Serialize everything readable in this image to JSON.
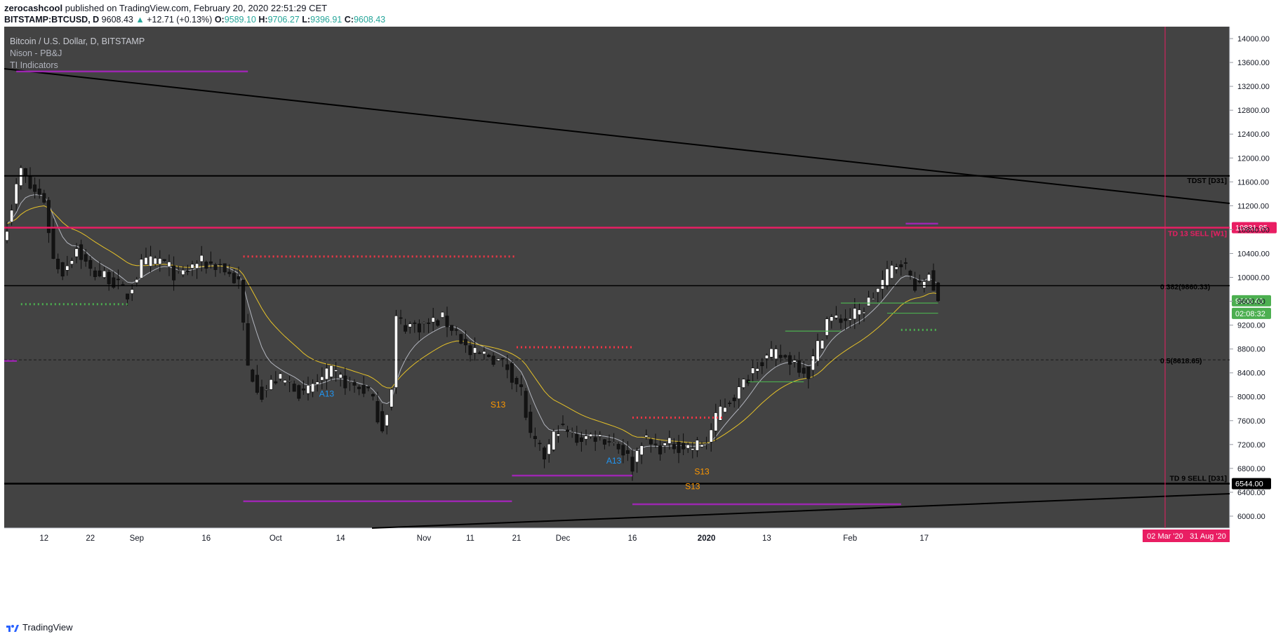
{
  "header": {
    "author": "zerocashcool",
    "published": "published on TradingView.com, February 20, 2020 22:51:29 CET"
  },
  "quote": {
    "symbol": "BITSTAMP:BTCUSD, D",
    "last": "9608.43",
    "arrow": "▲",
    "change": "+12.71 (+0.13%)",
    "o_label": "O:",
    "o": "9589.10",
    "h_label": "H:",
    "h": "9706.27",
    "l_label": "L:",
    "l": "9396.91",
    "c_label": "C:",
    "c": "9608.43"
  },
  "legend": {
    "title": "Bitcoin / U.S. Dollar, D, BITSTAMP",
    "study1": "Nison - PB&J",
    "study2": "TI Indicators"
  },
  "footer": {
    "brand": "TradingView"
  },
  "colors": {
    "panel": "#434343",
    "up_candle": "#ffffff",
    "down_candle": "#131313",
    "pink": "#e91e63",
    "purple": "#9c27b0",
    "green": "#4caf50",
    "red_dot": "#f23645",
    "ema_fast": "#b2b5be",
    "ema_slow": "#e6c229",
    "orange": "#ff9800",
    "blue": "#2196f3"
  },
  "chart_data": {
    "type": "candlestick",
    "title": "Bitcoin / U.S. Dollar, D, BITSTAMP",
    "ylim": [
      5800,
      14200
    ],
    "y_ticks": [
      14000,
      13600,
      13200,
      12800,
      12400,
      12000,
      11600,
      11200,
      10800,
      10400,
      10000,
      9600,
      9200,
      8800,
      8400,
      8000,
      7600,
      7200,
      6800,
      6400,
      6000
    ],
    "y_tick_labels": [
      "14000.00",
      "13600.00",
      "13200.00",
      "12800.00",
      "12400.00",
      "12000.00",
      "11600.00",
      "11200.00",
      "10800.00",
      "10400.00",
      "10000.00",
      "9600.00",
      "9200.00",
      "8800.00",
      "8400.00",
      "8000.00",
      "7600.00",
      "7200.00",
      "6800.00",
      "6400.00",
      "6000.00"
    ],
    "n_bars": 244,
    "x_ticks": [
      {
        "i": 8,
        "label": "12"
      },
      {
        "i": 18,
        "label": "22"
      },
      {
        "i": 28,
        "label": "Sep"
      },
      {
        "i": 43,
        "label": "16"
      },
      {
        "i": 58,
        "label": "Oct"
      },
      {
        "i": 72,
        "label": "14"
      },
      {
        "i": 90,
        "label": "Nov"
      },
      {
        "i": 100,
        "label": "11"
      },
      {
        "i": 110,
        "label": "21"
      },
      {
        "i": 120,
        "label": "Dec"
      },
      {
        "i": 135,
        "label": "16"
      },
      {
        "i": 151,
        "label": "2020"
      },
      {
        "i": 164,
        "label": "13"
      },
      {
        "i": 182,
        "label": "Feb"
      },
      {
        "i": 198,
        "label": "17"
      }
    ],
    "closes": [
      {
        "i": 0,
        "v": 10900
      },
      {
        "i": 3,
        "v": 11800
      },
      {
        "i": 5,
        "v": 11500
      },
      {
        "i": 8,
        "v": 11300
      },
      {
        "i": 10,
        "v": 10300
      },
      {
        "i": 12,
        "v": 10100
      },
      {
        "i": 15,
        "v": 10500
      },
      {
        "i": 18,
        "v": 10100
      },
      {
        "i": 22,
        "v": 10000
      },
      {
        "i": 26,
        "v": 9700
      },
      {
        "i": 29,
        "v": 10200
      },
      {
        "i": 33,
        "v": 10300
      },
      {
        "i": 37,
        "v": 10000
      },
      {
        "i": 41,
        "v": 10250
      },
      {
        "i": 46,
        "v": 10200
      },
      {
        "i": 50,
        "v": 9900
      },
      {
        "i": 52,
        "v": 8500
      },
      {
        "i": 55,
        "v": 8050
      },
      {
        "i": 58,
        "v": 8300
      },
      {
        "i": 62,
        "v": 8200
      },
      {
        "i": 64,
        "v": 8000
      },
      {
        "i": 66,
        "v": 8200
      },
      {
        "i": 70,
        "v": 8400
      },
      {
        "i": 74,
        "v": 8200
      },
      {
        "i": 78,
        "v": 8100
      },
      {
        "i": 81,
        "v": 7500
      },
      {
        "i": 83,
        "v": 8100
      },
      {
        "i": 84,
        "v": 9300
      },
      {
        "i": 86,
        "v": 9200
      },
      {
        "i": 90,
        "v": 9200
      },
      {
        "i": 94,
        "v": 9300
      },
      {
        "i": 97,
        "v": 9100
      },
      {
        "i": 100,
        "v": 8700
      },
      {
        "i": 104,
        "v": 8700
      },
      {
        "i": 108,
        "v": 8500
      },
      {
        "i": 111,
        "v": 8100
      },
      {
        "i": 113,
        "v": 7300
      },
      {
        "i": 116,
        "v": 7000
      },
      {
        "i": 119,
        "v": 7500
      },
      {
        "i": 123,
        "v": 7300
      },
      {
        "i": 127,
        "v": 7350
      },
      {
        "i": 131,
        "v": 7250
      },
      {
        "i": 133,
        "v": 7100
      },
      {
        "i": 135,
        "v": 6850
      },
      {
        "i": 137,
        "v": 7300
      },
      {
        "i": 140,
        "v": 7150
      },
      {
        "i": 144,
        "v": 7200
      },
      {
        "i": 148,
        "v": 7150
      },
      {
        "i": 151,
        "v": 7250
      },
      {
        "i": 154,
        "v": 7800
      },
      {
        "i": 158,
        "v": 8100
      },
      {
        "i": 162,
        "v": 8600
      },
      {
        "i": 166,
        "v": 8700
      },
      {
        "i": 170,
        "v": 8600
      },
      {
        "i": 173,
        "v": 8400
      },
      {
        "i": 177,
        "v": 9300
      },
      {
        "i": 181,
        "v": 9300
      },
      {
        "i": 184,
        "v": 9400
      },
      {
        "i": 188,
        "v": 9800
      },
      {
        "i": 191,
        "v": 10150
      },
      {
        "i": 193,
        "v": 10300
      },
      {
        "i": 195,
        "v": 10000
      },
      {
        "i": 197,
        "v": 9800
      },
      {
        "i": 199,
        "v": 10100
      },
      {
        "i": 201,
        "v": 9608.43
      }
    ],
    "horizontal_levels": [
      {
        "name": "TDST [D31]",
        "value": 11700
      },
      {
        "name": "TD 13 SELL [W1]",
        "value": 10831.95,
        "label": "10831.95"
      },
      {
        "name": "0.382(9860.33)",
        "value": 9860.33
      },
      {
        "name": "0.5(8618.65)",
        "value": 8618.65
      },
      {
        "name": "TD 9 SELL [D31]",
        "value": 6544.0,
        "label": "6544.00"
      }
    ],
    "last_price": {
      "value": 9608.43,
      "label": "9608.43",
      "countdown": "02:08:32"
    },
    "annotations": [
      "A13",
      "S13",
      "S13",
      "A13",
      "S13"
    ],
    "x_range_labels": [
      "02 Mar '20",
      "31 Aug '20"
    ],
    "vertical_marker_index": 250
  }
}
